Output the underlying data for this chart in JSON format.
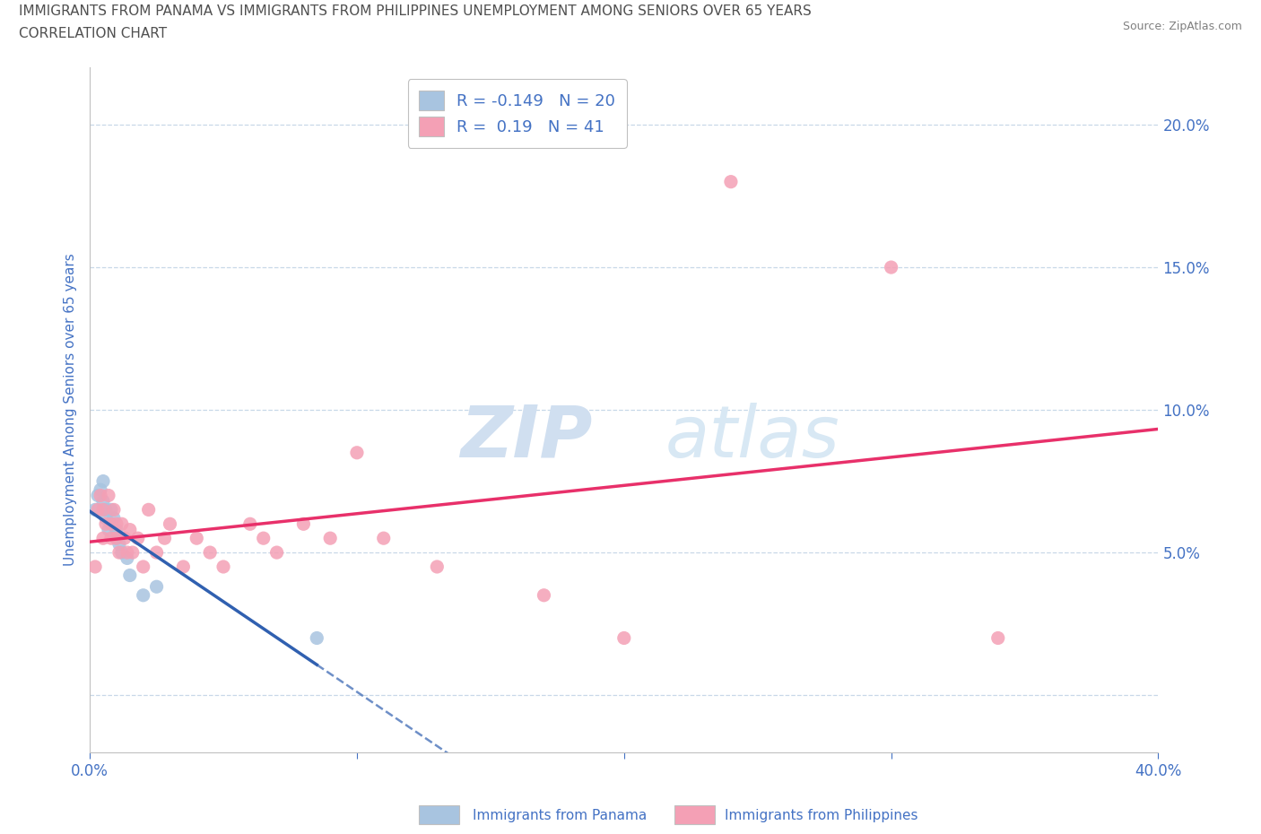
{
  "title_line1": "IMMIGRANTS FROM PANAMA VS IMMIGRANTS FROM PHILIPPINES UNEMPLOYMENT AMONG SENIORS OVER 65 YEARS",
  "title_line2": "CORRELATION CHART",
  "source": "Source: ZipAtlas.com",
  "ylabel": "Unemployment Among Seniors over 65 years",
  "xlim": [
    0.0,
    0.4
  ],
  "ylim": [
    -0.02,
    0.22
  ],
  "yticks": [
    0.0,
    0.05,
    0.1,
    0.15,
    0.2
  ],
  "ytick_labels": [
    "",
    "5.0%",
    "10.0%",
    "15.0%",
    "20.0%"
  ],
  "xticks": [
    0.0,
    0.1,
    0.2,
    0.3,
    0.4
  ],
  "xtick_labels": [
    "0.0%",
    "",
    "",
    "",
    "40.0%"
  ],
  "panama_R": -0.149,
  "panama_N": 20,
  "philippines_R": 0.19,
  "philippines_N": 41,
  "panama_color": "#a8c4e0",
  "philippines_color": "#f4a0b5",
  "panama_line_color": "#3060b0",
  "philippines_line_color": "#e8306a",
  "background_color": "#ffffff",
  "panama_x": [
    0.002,
    0.003,
    0.004,
    0.005,
    0.005,
    0.006,
    0.006,
    0.007,
    0.008,
    0.008,
    0.009,
    0.01,
    0.01,
    0.011,
    0.012,
    0.014,
    0.015,
    0.02,
    0.025,
    0.085
  ],
  "panama_y": [
    0.065,
    0.07,
    0.072,
    0.068,
    0.075,
    0.062,
    0.065,
    0.058,
    0.065,
    0.06,
    0.062,
    0.055,
    0.058,
    0.053,
    0.05,
    0.048,
    0.042,
    0.035,
    0.038,
    0.02
  ],
  "philippines_x": [
    0.002,
    0.003,
    0.004,
    0.005,
    0.005,
    0.006,
    0.007,
    0.008,
    0.008,
    0.009,
    0.01,
    0.01,
    0.011,
    0.012,
    0.013,
    0.014,
    0.015,
    0.016,
    0.018,
    0.02,
    0.022,
    0.025,
    0.028,
    0.03,
    0.035,
    0.04,
    0.045,
    0.05,
    0.06,
    0.065,
    0.07,
    0.08,
    0.09,
    0.1,
    0.11,
    0.13,
    0.17,
    0.2,
    0.24,
    0.3,
    0.34
  ],
  "philippines_y": [
    0.045,
    0.065,
    0.07,
    0.055,
    0.065,
    0.06,
    0.07,
    0.06,
    0.055,
    0.065,
    0.06,
    0.055,
    0.05,
    0.06,
    0.055,
    0.05,
    0.058,
    0.05,
    0.055,
    0.045,
    0.065,
    0.05,
    0.055,
    0.06,
    0.045,
    0.055,
    0.05,
    0.045,
    0.06,
    0.055,
    0.05,
    0.06,
    0.055,
    0.085,
    0.055,
    0.045,
    0.035,
    0.02,
    0.18,
    0.15,
    0.02
  ]
}
